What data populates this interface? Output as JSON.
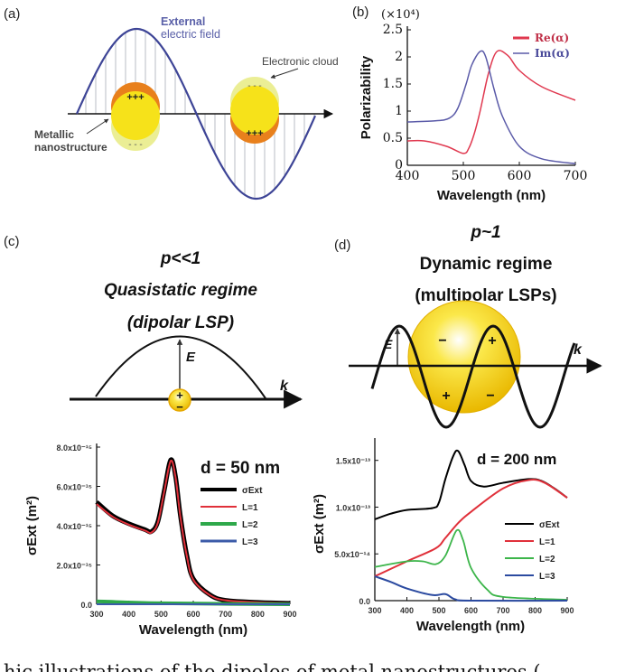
{
  "panel_a": {
    "label": "(a)",
    "field_label_1": "External",
    "field_label_2": "electric field",
    "cloud_label": "Electronic cloud",
    "metal_label_1": "Metallic",
    "metal_label_2": "nanostructure",
    "plus": "+++",
    "minus": "- - -",
    "colors": {
      "wave": "#3d4496",
      "sphere": "#f6e21a",
      "charge": "#e8801c",
      "cloud": "#e9ec8a"
    }
  },
  "panel_c_diagram": {
    "label": "(c)",
    "title_1": "p<<1",
    "title_2": "Quasistatic regime",
    "title_3": "(dipolar LSP)",
    "e_label": "E",
    "k_label": "k",
    "plus": "+",
    "minus": "−"
  },
  "panel_d_diagram": {
    "label": "(d)",
    "title_1": "p~1",
    "title_2": "Dynamic regime",
    "title_3": "(multipolar LSPs)",
    "e_label": "E",
    "k_label": "k",
    "signs": [
      "−",
      "+",
      "+",
      "−"
    ]
  },
  "caption_fragment": "hic illustrations of the dipoles of metal nanostructures (",
  "chart_data": [
    {
      "id": "b",
      "panel_label": "(b)",
      "type": "line",
      "multiplier": "(×10⁴)",
      "xlabel": "Wavelength (nm)",
      "ylabel": "Polarizability",
      "xlim": [
        400,
        700
      ],
      "ylim": [
        0,
        2.5
      ],
      "xticks": [
        "400",
        "500",
        "600",
        "700"
      ],
      "yticks": [
        "0",
        "0.5",
        "1",
        "1.5",
        "2",
        "2.5"
      ],
      "legend_position": "top-right",
      "series": [
        {
          "name": "Re(α)",
          "color": "#e0384f",
          "x": [
            400,
            430,
            470,
            500,
            510,
            520,
            530,
            545,
            560,
            580,
            600,
            640,
            700
          ],
          "y": [
            0.45,
            0.45,
            0.35,
            0.22,
            0.32,
            0.6,
            1.0,
            1.7,
            2.1,
            2.02,
            1.75,
            1.45,
            1.2
          ]
        },
        {
          "name": "Im(α)",
          "color": "#5a5aa8",
          "x": [
            400,
            450,
            475,
            490,
            505,
            515,
            530,
            540,
            555,
            570,
            600,
            640,
            700
          ],
          "y": [
            0.8,
            0.82,
            0.87,
            1.05,
            1.5,
            1.85,
            2.1,
            2.0,
            1.4,
            0.9,
            0.35,
            0.12,
            0.03
          ]
        }
      ]
    },
    {
      "id": "c",
      "type": "line",
      "annotation": "d = 50 nm",
      "xlabel": "Wavelength (nm)",
      "ylabel": "σExt (m²)",
      "xlim": [
        300,
        900
      ],
      "ylim": [
        0,
        8e-15
      ],
      "xticks": [
        "300",
        "400",
        "500",
        "600",
        "700",
        "800",
        "900"
      ],
      "yticks": [
        "0.0",
        "2.0x10⁻¹⁵",
        "4.0x10⁻¹⁵",
        "6.0x10⁻¹⁵",
        "8.0x10⁻¹⁵"
      ],
      "legend_position": "right",
      "series": [
        {
          "name": "σExt",
          "color": "#000000",
          "x": [
            300,
            350,
            400,
            450,
            470,
            490,
            510,
            530,
            545,
            560,
            580,
            600,
            650,
            700,
            800,
            900
          ],
          "y": [
            5.2e-15,
            4.5e-15,
            4.1e-15,
            3.8e-15,
            3.7e-15,
            4.2e-15,
            5.8e-15,
            7.35e-15,
            6.5e-15,
            4.5e-15,
            2.5e-15,
            1.3e-15,
            5e-16,
            2e-16,
            1e-16,
            5e-17
          ]
        },
        {
          "name": "L=1",
          "color": "#e0303a",
          "x": [
            300,
            350,
            400,
            450,
            470,
            490,
            510,
            530,
            545,
            560,
            580,
            600,
            650,
            700,
            800,
            900
          ],
          "y": [
            5.1e-15,
            4.45e-15,
            4.05e-15,
            3.75e-15,
            3.65e-15,
            4.15e-15,
            5.75e-15,
            7.3e-15,
            6.45e-15,
            4.45e-15,
            2.45e-15,
            1.25e-15,
            4.8e-16,
            2e-16,
            1e-16,
            5e-17
          ]
        },
        {
          "name": "L=2",
          "color": "#2ea84a",
          "x": [
            300,
            500,
            900
          ],
          "y": [
            1.5e-16,
            5e-17,
            0
          ]
        },
        {
          "name": "L=3",
          "color": "#3b5ba8",
          "x": [
            300,
            900
          ],
          "y": [
            0,
            0
          ]
        }
      ]
    },
    {
      "id": "d",
      "type": "line",
      "annotation": "d = 200 nm",
      "xlabel": "Wavelength (nm)",
      "ylabel": "σExt (m²)",
      "xlim": [
        300,
        900
      ],
      "ylim": [
        0,
        1.7e-13
      ],
      "xticks": [
        "300",
        "400",
        "500",
        "600",
        "700",
        "800",
        "900"
      ],
      "yticks": [
        "0.0",
        "5.0x10⁻¹⁴",
        "1.0x10⁻¹³",
        "1.5x10⁻¹³"
      ],
      "legend_position": "right",
      "series": [
        {
          "name": "σExt",
          "color": "#000000",
          "x": [
            300,
            350,
            400,
            480,
            500,
            520,
            545,
            560,
            580,
            600,
            640,
            700,
            780,
            820,
            860,
            900
          ],
          "y": [
            8.7e-14,
            9.3e-14,
            9.7e-14,
            9.9e-14,
            1.05e-13,
            1.3e-13,
            1.55e-13,
            1.6e-13,
            1.45e-13,
            1.28e-13,
            1.22e-13,
            1.26e-13,
            1.3e-13,
            1.28e-13,
            1.2e-13,
            1.1e-13
          ]
        },
        {
          "name": "L=1",
          "color": "#e0303a",
          "x": [
            300,
            400,
            490,
            520,
            560,
            600,
            700,
            780,
            830,
            900
          ],
          "y": [
            2.6e-14,
            4.2e-14,
            5.6e-14,
            6.7e-14,
            8.3e-14,
            9.5e-14,
            1.2e-13,
            1.29e-13,
            1.26e-13,
            1.1e-13
          ]
        },
        {
          "name": "L=2",
          "color": "#3cb54a",
          "x": [
            300,
            400,
            450,
            490,
            520,
            555,
            575,
            600,
            650,
            700,
            900
          ],
          "y": [
            3.6e-14,
            4.2e-14,
            4.2e-14,
            3.9e-14,
            4.8e-14,
            7.5e-14,
            6.5e-14,
            3.5e-14,
            1.2e-14,
            4e-15,
            1e-15
          ]
        },
        {
          "name": "L=3",
          "color": "#2b4aa0",
          "x": [
            300,
            350,
            400,
            480,
            520,
            550,
            600,
            900
          ],
          "y": [
            2.6e-14,
            2e-14,
            1.3e-14,
            6e-15,
            7e-15,
            1.5e-15,
            0,
            0
          ]
        }
      ]
    }
  ]
}
